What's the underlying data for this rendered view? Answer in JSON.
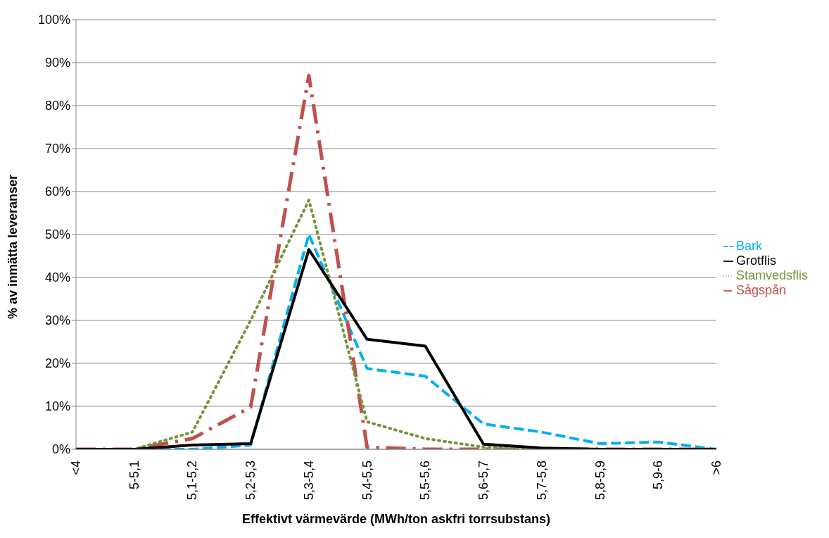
{
  "chart_data": {
    "type": "line",
    "xlabel": "Effektivt värmevärde (MWh/ton askfri torrsubstans)",
    "ylabel": "% av inmätta leveranser",
    "categories": [
      "<4",
      "5-5,1",
      "5,1-5,2",
      "5,2-5,3",
      "5,3-5,4",
      "5,4-5,5",
      "5,5-5,6",
      "5,6-5,7",
      "5,7-5,8",
      "5,8-5,9",
      "5,9-6",
      ">6"
    ],
    "ylim": [
      0,
      100
    ],
    "yticks": [
      {
        "value": 0,
        "label": "0%"
      },
      {
        "value": 10,
        "label": "10%"
      },
      {
        "value": 20,
        "label": "20%"
      },
      {
        "value": 30,
        "label": "30%"
      },
      {
        "value": 40,
        "label": "40%"
      },
      {
        "value": 50,
        "label": "50%"
      },
      {
        "value": 60,
        "label": "60%"
      },
      {
        "value": 70,
        "label": "70%"
      },
      {
        "value": 80,
        "label": "80%"
      },
      {
        "value": 90,
        "label": "90%"
      },
      {
        "value": 100,
        "label": "100%"
      }
    ],
    "grid": "y",
    "legend": "right",
    "marker": "none",
    "series": [
      {
        "name": "Bark",
        "color": "#00b0f0",
        "line_style": "dashed",
        "values": [
          0,
          0,
          0,
          1,
          50,
          18.8,
          17,
          5.9,
          4,
          1.3,
          1.7,
          0
        ]
      },
      {
        "name": "Sågspån",
        "color": "#c0504d",
        "line_style": "dashdot",
        "values": [
          0,
          0,
          2.5,
          9.8,
          87,
          0.5,
          0,
          0,
          0,
          0,
          0,
          0
        ]
      },
      {
        "name": "Stamvedsflis",
        "color": "#77933c",
        "line_style": "dotted",
        "values": [
          0,
          0,
          4,
          30,
          58,
          6.4,
          2.5,
          0.5,
          0,
          0,
          0,
          0
        ]
      },
      {
        "name": "Grotflis",
        "color": "#000000",
        "line_style": "solid",
        "values": [
          0,
          0,
          1,
          1.3,
          46.5,
          25.6,
          24,
          1.2,
          0.3,
          0,
          0,
          0
        ]
      }
    ]
  }
}
